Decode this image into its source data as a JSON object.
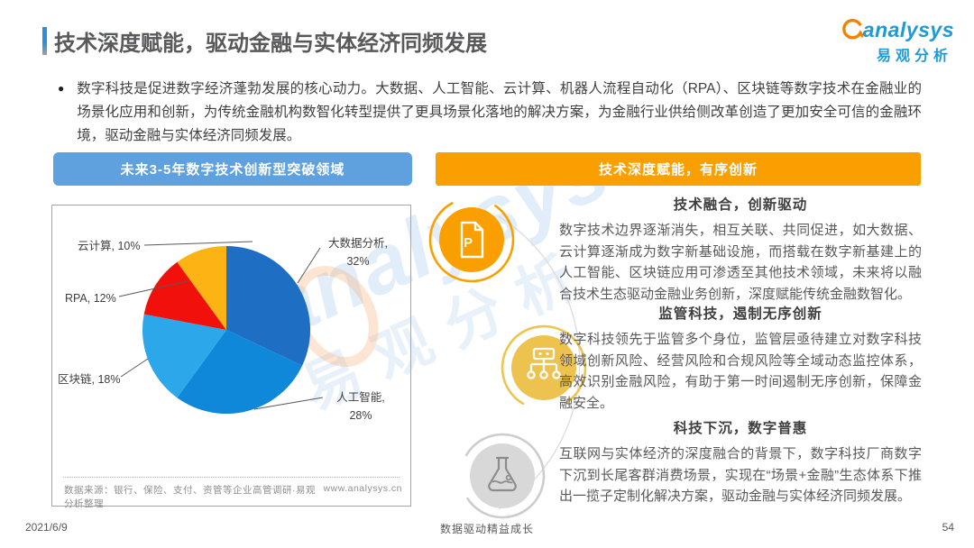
{
  "header": {
    "title": "技术深度赋能，驱动金融与实体经济同频发展",
    "logo": {
      "en": "analysys",
      "cn": "易观分析"
    }
  },
  "intro": {
    "bullet": "●",
    "text": "数字科技是促进数字经济蓬勃发展的核心动力。大数据、人工智能、云计算、机器人流程自动化（RPA）、区块链等数字技术在金融业的场景化应用和创新，为传统金融机构数智化转型提供了更具场景化落地的解决方案，为金融行业供给侧改革创造了更加安全可信的金融环境，驱动金融与实体经济同频发展。"
  },
  "banners": {
    "left": {
      "label": "未来3-5年数字技术创新型突破领域",
      "color": "#5FA0DE"
    },
    "right": {
      "label": "技术深度赋能，有序创新",
      "color": "#F9A000"
    }
  },
  "chart_data": {
    "type": "pie",
    "title": "未来3-5年数字技术创新型突破领域",
    "unit": "%",
    "start_angle": "top",
    "direction": "clockwise",
    "legend": "none",
    "labels_format": "name, value%",
    "slices": [
      {
        "label": "大数据分析",
        "value": 32,
        "color": "#1E6FC4"
      },
      {
        "label": "人工智能",
        "value": 28,
        "color": "#0F88D9"
      },
      {
        "label": "区块链",
        "value": 18,
        "color": "#2BA7EA"
      },
      {
        "label": "RPA",
        "value": 12,
        "color": "#F2100B"
      },
      {
        "label": "云计算",
        "value": 10,
        "color": "#FBB414"
      }
    ]
  },
  "chart_panel": {
    "source_note": "数据来源：银行、保险、支付、资管等企业高管调研·易观分析整理",
    "website": "www.analysys.cn"
  },
  "right_panel": {
    "sections": [
      {
        "icon": "document-p-icon",
        "title": "技术融合，创新驱动",
        "body": "数字技术边界逐渐消失，相互关联、共同促进，如大数据、云计算逐渐成为数字新基础设施，而搭载在数字新基建上的人工智能、区块链应用可渗透至其他技术领域，未来将以融合技术生态驱动金融业务创新，深度赋能传统金融数智化。"
      },
      {
        "icon": "org-chart-icon",
        "title": "监管科技，遏制无序创新",
        "body": "数字科技领先于监管多个身位，监管层亟待建立对数字科技领域创新风险、经营风险和合规风险等全域动态监控体系，高效识别金融风险，有助于第一时间遏制无序创新，保障金融安全。"
      },
      {
        "icon": "flask-icon",
        "title": "科技下沉，数字普惠",
        "body": "互联网与实体经济的深度融合的背景下，数字科技厂商数字下沉到长尾客群消费场景，实现在“场景+金融”生态体系下推出一揽子定制化解决方案，驱动金融与实体经济同频发展。"
      }
    ]
  },
  "watermark": {
    "en": "analysys",
    "cn": "易观分析"
  },
  "footer": {
    "date": "2021/6/9",
    "slogan": "数据驱动精益成长",
    "page": "54"
  }
}
